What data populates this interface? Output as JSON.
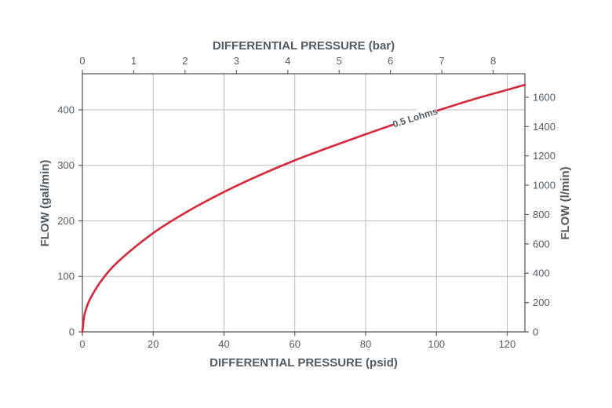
{
  "chart_data": {
    "type": "line",
    "x_bottom": {
      "label": "DIFFERENTIAL PRESSURE (psid)",
      "range": [
        0,
        125
      ],
      "ticks": [
        0,
        20,
        40,
        60,
        80,
        100,
        120
      ]
    },
    "x_top": {
      "label": "DIFFERENTIAL PRESSURE (bar)",
      "range": [
        0,
        8.618
      ],
      "ticks": [
        0,
        1,
        2,
        3,
        4,
        5,
        6,
        7,
        8
      ]
    },
    "y_left": {
      "label": "FLOW (gal/min)",
      "range": [
        0,
        465
      ],
      "ticks": [
        0,
        100,
        200,
        300,
        400
      ]
    },
    "y_right": {
      "label": "FLOW (l/min)",
      "range": [
        0,
        1760
      ],
      "ticks": [
        0,
        200,
        400,
        600,
        800,
        1000,
        1200,
        1400,
        1600
      ]
    },
    "grid": true,
    "series": [
      {
        "name": "0.5 Lohms",
        "color": "#d7283a",
        "x": [
          0,
          0.5,
          1,
          2,
          5,
          10,
          20,
          30,
          40,
          50,
          60,
          70,
          80,
          90,
          100,
          110,
          120,
          125
        ],
        "y": [
          0,
          28,
          40,
          57,
          89,
          126,
          178,
          218,
          252,
          282,
          309,
          333,
          356,
          378,
          398,
          418,
          436,
          445
        ]
      }
    ]
  }
}
